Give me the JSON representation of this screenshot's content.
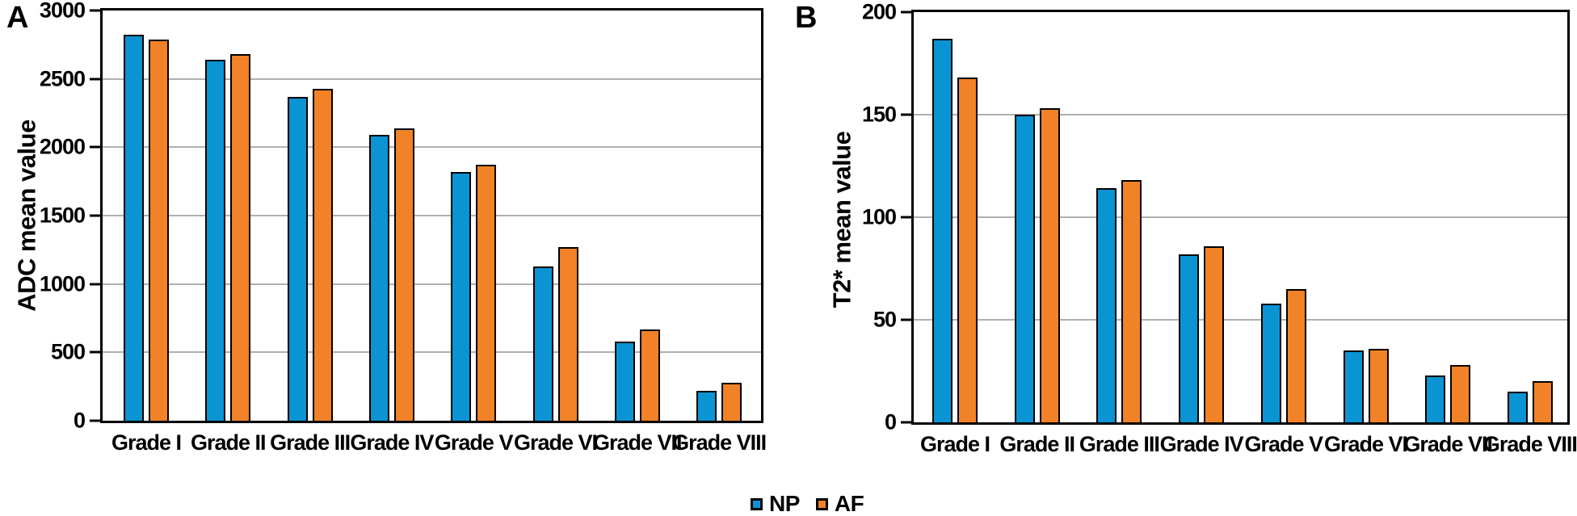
{
  "figure_title": "",
  "colors": {
    "np_blue": "#0b94d3",
    "af_orange": "#f18227",
    "grid_gray": "#b0b0b0",
    "axis_black": "#000000",
    "background": "#ffffff"
  },
  "legend": {
    "items": [
      {
        "label": "NP",
        "color": "#0b94d3"
      },
      {
        "label": "AF",
        "color": "#f18227"
      }
    ]
  },
  "chart_data": [
    {
      "type": "bar",
      "panel_label": "A",
      "title": "",
      "xlabel": "",
      "ylabel": "ADC mean value",
      "ylim": [
        0,
        3000
      ],
      "yticks": [
        0,
        500,
        1000,
        1500,
        2000,
        2500,
        3000
      ],
      "grid": true,
      "legend_position": "bottom-center-shared",
      "categories": [
        "Grade I",
        "Grade II",
        "Grade III",
        "Grade IV",
        "Grade V",
        "Grade VI",
        "Grade VII",
        "Grade VIII"
      ],
      "series": [
        {
          "name": "NP",
          "color": "#0b94d3",
          "values": [
            2820,
            2640,
            2370,
            2090,
            1820,
            1130,
            580,
            220
          ]
        },
        {
          "name": "AF",
          "color": "#f18227",
          "values": [
            2790,
            2680,
            2430,
            2140,
            1870,
            1270,
            670,
            280
          ]
        }
      ]
    },
    {
      "type": "bar",
      "panel_label": "B",
      "title": "",
      "xlabel": "",
      "ylabel": "T2* mean value",
      "ylim": [
        0,
        200
      ],
      "yticks": [
        0,
        50,
        100,
        150,
        200
      ],
      "grid": true,
      "legend_position": "bottom-center-shared",
      "categories": [
        "Grade I",
        "Grade II",
        "Grade III",
        "Grade IV",
        "Grade V",
        "Grade VI",
        "Grade VII",
        "Grade VIII"
      ],
      "series": [
        {
          "name": "NP",
          "color": "#0b94d3",
          "values": [
            187,
            150,
            114,
            82,
            58,
            35,
            23,
            15
          ]
        },
        {
          "name": "AF",
          "color": "#f18227",
          "values": [
            168,
            153,
            118,
            86,
            65,
            36,
            28,
            20
          ]
        }
      ]
    }
  ]
}
